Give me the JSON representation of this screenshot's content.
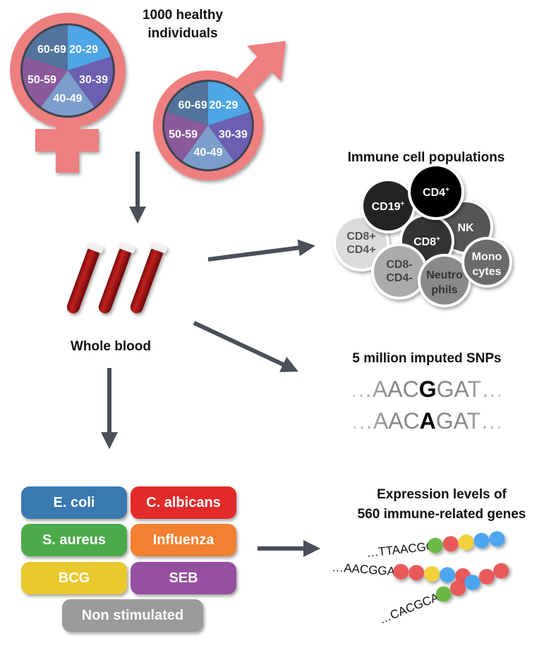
{
  "cohort": {
    "title_line1": "1000 healthy",
    "title_line2": "individuals",
    "age_groups": [
      "20-29",
      "30-39",
      "40-49",
      "50-59",
      "60-69"
    ],
    "age_colors": [
      "#4ea6e6",
      "#6a5fb0",
      "#7b9dcc",
      "#8a5a9b",
      "#52739b"
    ],
    "symbol_color": "#ee7f7f"
  },
  "blood": {
    "label": "Whole blood"
  },
  "immune_cells": {
    "title": "Immune cell populations",
    "cells": [
      {
        "label": "CD19",
        "sup": "+",
        "color": "#232323",
        "text": "#ffffff"
      },
      {
        "label": "NK",
        "sup": "",
        "color": "#555555",
        "text": "#ffffff"
      },
      {
        "label": "CD4",
        "sup": "+",
        "color": "#000000",
        "text": "#ffffff"
      },
      {
        "label": "CD8",
        "sup": "+",
        "color": "#333333",
        "text": "#ffffff"
      },
      {
        "label": "CD8+ CD4+",
        "line1": "CD8",
        "sup1": "+",
        "line2": "CD4",
        "sup2": "+",
        "color": "#dcdcdc",
        "text": "#555555"
      },
      {
        "label": "CD8- CD4-",
        "line1": "CD8",
        "sup1": "-",
        "line2": "CD4",
        "sup2": "-",
        "color": "#ababab",
        "text": "#444444"
      },
      {
        "label": "Neutrophils",
        "line1": "Neutro",
        "line2": "phils",
        "color": "#8a8a8a",
        "text": "#333333"
      },
      {
        "label": "Monocytes",
        "line1": "Mono",
        "line2": "cytes",
        "color": "#6a6a6a",
        "text": "#ffffff"
      }
    ]
  },
  "snps": {
    "title": "5 million imputed SNPs",
    "seq1": {
      "prefix": "…AAC",
      "allele": "G",
      "suffix": "GAT…"
    },
    "seq2": {
      "prefix": "…AAC",
      "allele": "A",
      "suffix": "GAT…"
    }
  },
  "stimulations": [
    {
      "label": "E. coli",
      "color": "#3a78b0"
    },
    {
      "label": "C. albicans",
      "color": "#e22a2a"
    },
    {
      "label": "S. aureus",
      "color": "#4bab4a"
    },
    {
      "label": "Influenza",
      "color": "#f28030"
    },
    {
      "label": "BCG",
      "color": "#e9c82e"
    },
    {
      "label": "SEB",
      "color": "#9550a0"
    },
    {
      "label": "Non stimulated",
      "color": "#9a9a9a"
    }
  ],
  "expression": {
    "title_line1": "Expression levels of",
    "title_line2": "560 immune-related genes",
    "genes": [
      {
        "seq": "…TTAACGG",
        "beads": [
          "#6cb846",
          "#e85a5a",
          "#f2d03a",
          "#4ea6ef",
          "#4ea6ef"
        ]
      },
      {
        "seq": "…AACGGAT",
        "beads": [
          "#e85a5a",
          "#e85a5a",
          "#f2d03a",
          "#4ea6ef",
          "#e85a5a"
        ]
      },
      {
        "seq": "…CACGCAA",
        "beads": [
          "#6cb846",
          "#e85a5a",
          "#4ea6ef",
          "#e85a5a",
          "#e85a5a"
        ]
      }
    ]
  }
}
